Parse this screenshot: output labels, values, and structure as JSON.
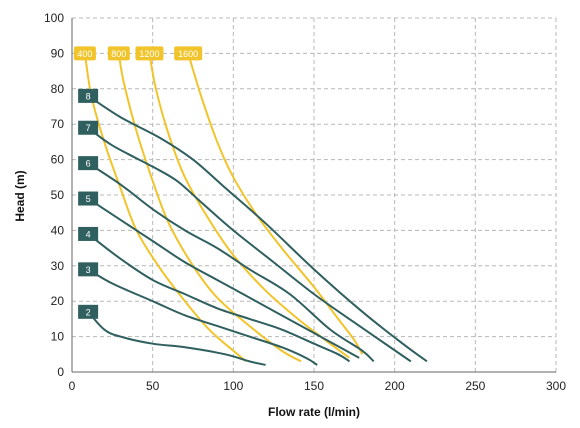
{
  "chart_data": {
    "type": "line",
    "xlabel": "Flow rate (l/min)",
    "ylabel": "Head (m)",
    "xlim": [
      0,
      300
    ],
    "ylim": [
      0,
      100
    ],
    "xticks": [
      "0",
      "50",
      "100",
      "150",
      "200",
      "250",
      "300"
    ],
    "yticks": [
      "0",
      "10",
      "20",
      "30",
      "40",
      "50",
      "60",
      "70",
      "80",
      "90",
      "100"
    ],
    "grid": true,
    "colors": {
      "series": "#2f5f5f",
      "iso": "#f2c42c",
      "grid": "#b8b8b8",
      "axis": "#666666"
    },
    "series": [
      {
        "name": "8",
        "x": [
          10,
          30,
          55,
          75,
          95,
          120,
          150,
          180,
          205,
          220
        ],
        "y": [
          78,
          72,
          66,
          60,
          52,
          42,
          29,
          17,
          8,
          3
        ]
      },
      {
        "name": "7",
        "x": [
          10,
          25,
          50,
          65,
          80,
          100,
          125,
          150,
          175,
          210
        ],
        "y": [
          69,
          64,
          58,
          54,
          48,
          40,
          31,
          22,
          14,
          3
        ]
      },
      {
        "name": "6",
        "x": [
          10,
          30,
          50,
          70,
          90,
          110,
          135,
          160,
          180,
          187
        ],
        "y": [
          59,
          53,
          46,
          40,
          35,
          29,
          22,
          12,
          6,
          3
        ]
      },
      {
        "name": "5",
        "x": [
          10,
          30,
          50,
          70,
          90,
          110,
          130,
          150,
          170,
          178
        ],
        "y": [
          49,
          43,
          37,
          31,
          26,
          21,
          16,
          11,
          6,
          4
        ]
      },
      {
        "name": "4",
        "x": [
          10,
          30,
          50,
          70,
          90,
          110,
          130,
          150,
          165,
          172
        ],
        "y": [
          39,
          32,
          26,
          22,
          18,
          15,
          12,
          8,
          5,
          3
        ]
      },
      {
        "name": "3",
        "x": [
          10,
          25,
          50,
          70,
          90,
          110,
          130,
          145,
          152
        ],
        "y": [
          29,
          25,
          20,
          16,
          13,
          10,
          7,
          4,
          2
        ]
      },
      {
        "name": "2",
        "x": [
          10,
          20,
          30,
          50,
          70,
          95,
          110,
          120
        ],
        "y": [
          17,
          12,
          10,
          8,
          7,
          5,
          3,
          2
        ]
      }
    ],
    "iso_curves": [
      {
        "name": "400",
        "x": [
          8,
          12,
          20,
          30,
          40,
          55,
          70,
          85,
          100,
          108
        ],
        "y": [
          90,
          78,
          65,
          52,
          40,
          29,
          20,
          12,
          6,
          3
        ]
      },
      {
        "name": "800",
        "x": [
          29,
          32,
          40,
          50,
          60,
          75,
          90,
          110,
          130,
          142
        ],
        "y": [
          90,
          82,
          68,
          54,
          42,
          30,
          21,
          13,
          6,
          3
        ]
      },
      {
        "name": "1200",
        "x": [
          48,
          52,
          60,
          70,
          85,
          100,
          120,
          140,
          160,
          172
        ],
        "y": [
          90,
          80,
          67,
          55,
          43,
          33,
          23,
          15,
          8,
          4
        ]
      },
      {
        "name": "1600",
        "x": [
          72,
          80,
          90,
          100,
          115,
          130,
          150,
          165,
          175,
          180
        ],
        "y": [
          90,
          78,
          65,
          55,
          44,
          35,
          24,
          15,
          9,
          5
        ]
      }
    ]
  }
}
